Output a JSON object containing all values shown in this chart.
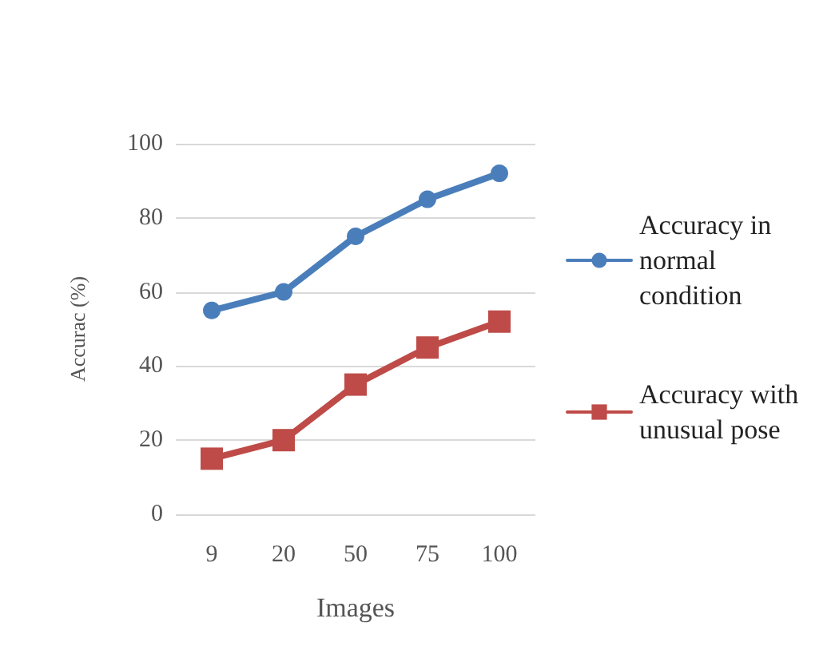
{
  "chart_data": {
    "type": "line",
    "xlabel": "Images",
    "ylabel": "Accurac (%)",
    "categories": [
      "9",
      "20",
      "50",
      "75",
      "100"
    ],
    "series": [
      {
        "name": "Accuracy in normal condition",
        "color": "#4a7ebb",
        "marker": "circle",
        "values": [
          55,
          60,
          75,
          85,
          92
        ]
      },
      {
        "name": "Accuracy with unusual pose",
        "color": "#be4b48",
        "marker": "square",
        "values": [
          15,
          20,
          35,
          45,
          52
        ]
      }
    ],
    "ylim": [
      0,
      100
    ],
    "yticks": [
      0,
      20,
      40,
      60,
      80,
      100
    ],
    "grid": "y",
    "legend": "right",
    "line_style": "solid"
  }
}
